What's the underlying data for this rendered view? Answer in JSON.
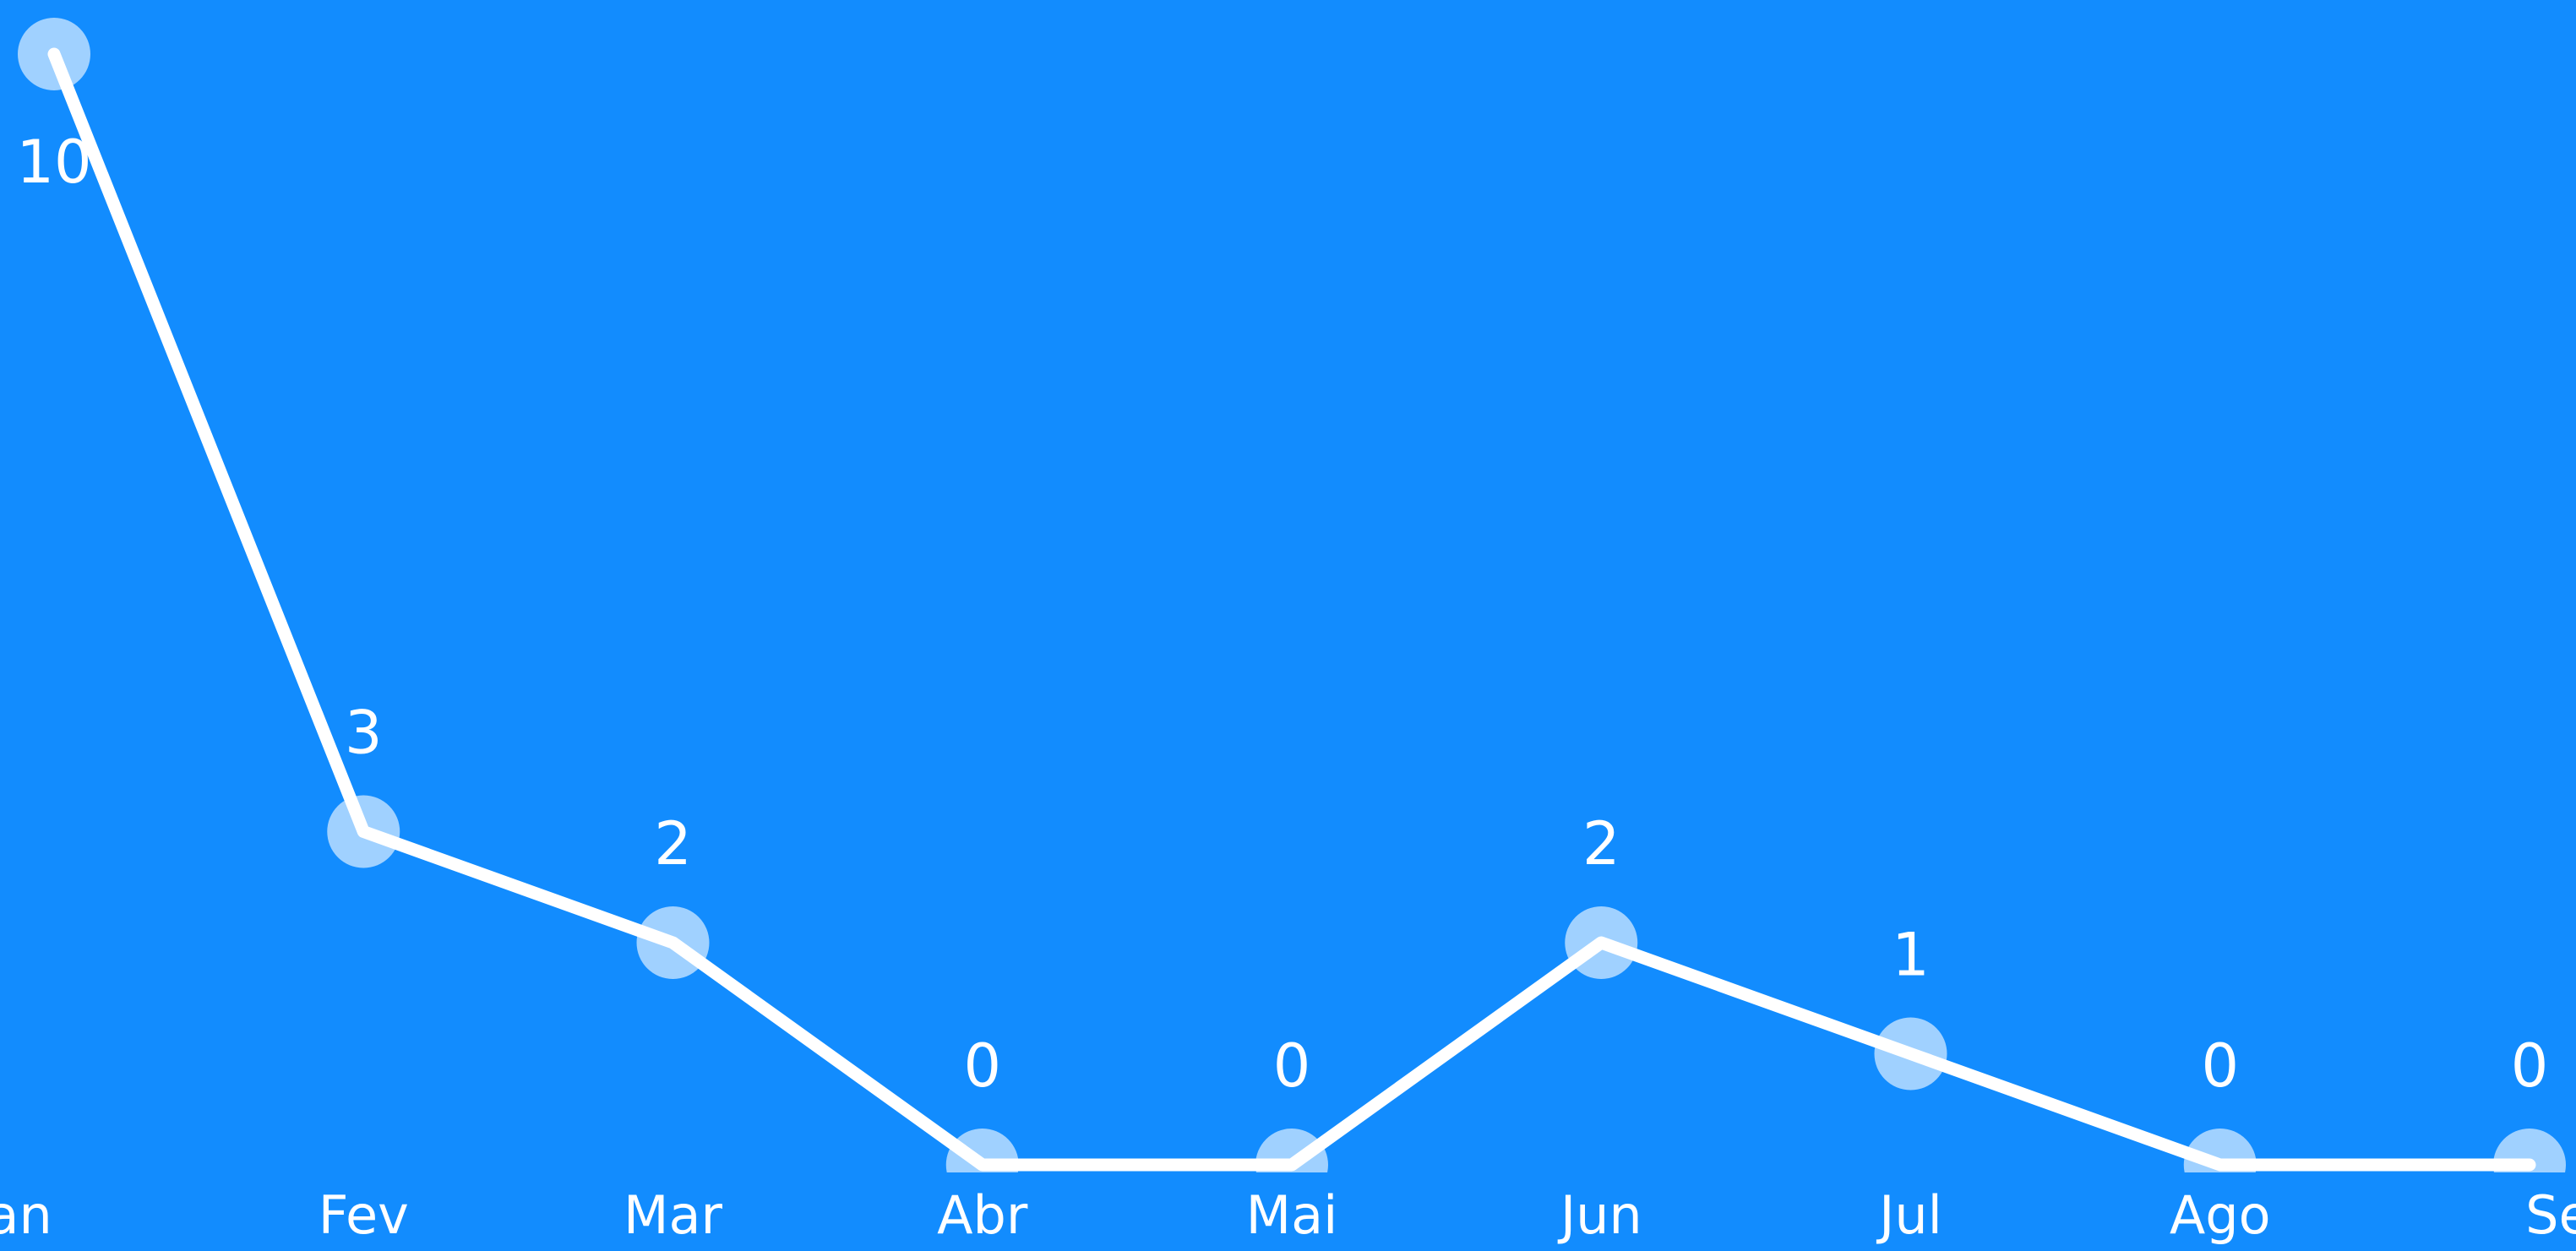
{
  "chart_data": {
    "type": "line",
    "categories": [
      "Jan",
      "Fev",
      "Mar",
      "Abr",
      "Mai",
      "Jun",
      "Jul",
      "Ago",
      "Set"
    ],
    "values": [
      10,
      3,
      2,
      0,
      0,
      2,
      1,
      0,
      0
    ],
    "color": "#ffffff",
    "ylim": [
      0,
      10
    ]
  }
}
